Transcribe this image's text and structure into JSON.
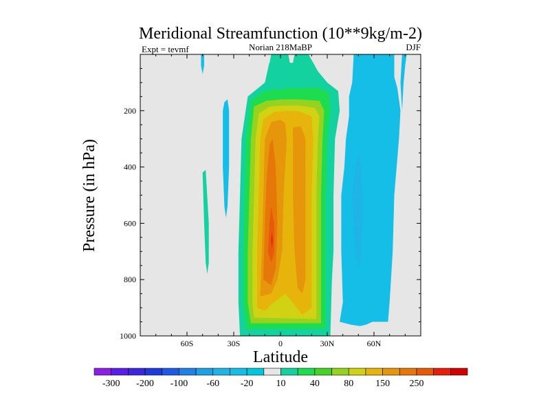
{
  "chart_data": {
    "type": "contour",
    "title": "Meridional Streamfunction (10**9kg/m-2)",
    "left_label": "Expt = tevmf",
    "center_label": "Norian 218MaBP",
    "right_label": "DJF",
    "xlabel": "Latitude",
    "ylabel": "Pressure (in hPa)",
    "xlim": [
      -90,
      90
    ],
    "ylim": [
      1000,
      0
    ],
    "x_ticks": [
      {
        "value": -60,
        "label": "60S"
      },
      {
        "value": -30,
        "label": "30S"
      },
      {
        "value": 0,
        "label": "0"
      },
      {
        "value": 30,
        "label": "30N"
      },
      {
        "value": 60,
        "label": "60N"
      }
    ],
    "y_ticks": [
      {
        "value": 200,
        "label": "200"
      },
      {
        "value": 400,
        "label": "400"
      },
      {
        "value": 600,
        "label": "600"
      },
      {
        "value": 800,
        "label": "800"
      },
      {
        "value": 1000,
        "label": "1000"
      }
    ],
    "levels": [
      -400,
      -300,
      -250,
      -200,
      -150,
      -100,
      -80,
      -60,
      -40,
      -20,
      -10,
      10,
      20,
      40,
      60,
      80,
      100,
      150,
      200,
      250,
      300
    ],
    "colorbar_labels": [
      "-300",
      "-200",
      "-100",
      "-60",
      "-20",
      "10",
      "40",
      "80",
      "150",
      "250"
    ],
    "colorbar_colors": [
      "#8c1ee6",
      "#5a1ee6",
      "#3c28dc",
      "#1e3cdc",
      "#1e5ae6",
      "#1e82e6",
      "#1ea0e6",
      "#1eb4e6",
      "#14bee6",
      "#00c8dc",
      "#e6e6e6",
      "#14d2a0",
      "#1edc50",
      "#46d228",
      "#96d21e",
      "#d2d214",
      "#e6b40a",
      "#e6960a",
      "#e6780a",
      "#e65a0a",
      "#e61e0a",
      "#d20000"
    ],
    "background_color": "#e6e6e6",
    "regions": [
      {
        "name": "hadley-north-rising",
        "color": "#14d2a0",
        "poly": [
          [
            -26,
            1000
          ],
          [
            -27,
            880
          ],
          [
            -27,
            700
          ],
          [
            -26,
            500
          ],
          [
            -25,
            300
          ],
          [
            -21,
            150
          ],
          [
            -10,
            100
          ],
          [
            -6,
            0
          ],
          [
            18,
            0
          ],
          [
            24,
            60
          ],
          [
            30,
            100
          ],
          [
            37,
            130
          ],
          [
            38,
            200
          ],
          [
            35,
            300
          ],
          [
            34,
            500
          ],
          [
            34,
            700
          ],
          [
            33,
            800
          ],
          [
            32,
            1000
          ]
        ]
      },
      {
        "name": "hadley-20",
        "color": "#1edc50",
        "poly": [
          [
            -22,
            975
          ],
          [
            -24,
            880
          ],
          [
            -24,
            700
          ],
          [
            -23,
            500
          ],
          [
            -22,
            300
          ],
          [
            -19,
            165
          ],
          [
            -12,
            135
          ],
          [
            -6,
            125
          ],
          [
            1,
            125
          ],
          [
            4,
            120
          ],
          [
            12,
            120
          ],
          [
            24,
            118
          ],
          [
            31,
            135
          ],
          [
            32,
            200
          ],
          [
            30,
            300
          ],
          [
            29,
            500
          ],
          [
            29,
            700
          ],
          [
            29,
            800
          ],
          [
            29,
            975
          ]
        ]
      },
      {
        "name": "hadley-40",
        "color": "#96d21e",
        "poly": [
          [
            -19,
            955
          ],
          [
            -21,
            880
          ],
          [
            -21,
            700
          ],
          [
            -20,
            500
          ],
          [
            -19,
            300
          ],
          [
            -17,
            185
          ],
          [
            -9,
            165
          ],
          [
            1,
            160
          ],
          [
            12,
            160
          ],
          [
            25,
            165
          ],
          [
            28,
            200
          ],
          [
            27,
            300
          ],
          [
            26,
            500
          ],
          [
            26,
            700
          ],
          [
            26,
            800
          ],
          [
            26,
            955
          ]
        ]
      },
      {
        "name": "hadley-60",
        "color": "#d2d214",
        "poly": [
          [
            -17,
            935
          ],
          [
            -18,
            880
          ],
          [
            -18,
            700
          ],
          [
            -17,
            500
          ],
          [
            -16,
            300
          ],
          [
            -14,
            210
          ],
          [
            -7,
            185
          ],
          [
            1,
            182
          ],
          [
            12,
            182
          ],
          [
            22,
            190
          ],
          [
            25,
            220
          ],
          [
            24,
            300
          ],
          [
            23,
            500
          ],
          [
            23,
            700
          ],
          [
            23,
            800
          ],
          [
            23,
            940
          ]
        ]
      },
      {
        "name": "hadley-80",
        "color": "#e6b40a",
        "poly": [
          [
            -15,
            900
          ],
          [
            -15,
            800
          ],
          [
            -15,
            700
          ],
          [
            -14,
            500
          ],
          [
            -13,
            300
          ],
          [
            -11,
            230
          ],
          [
            -4,
            205
          ],
          [
            4,
            200
          ],
          [
            12,
            202
          ],
          [
            20,
            220
          ],
          [
            21,
            300
          ],
          [
            20,
            500
          ],
          [
            20,
            700
          ],
          [
            20,
            800
          ],
          [
            20,
            900
          ],
          [
            14,
            925
          ],
          [
            9,
            890
          ],
          [
            3,
            850
          ],
          [
            -4,
            880
          ],
          [
            -10,
            910
          ]
        ]
      },
      {
        "name": "hadley-100",
        "color": "#e6960a",
        "poly": [
          [
            -13,
            860
          ],
          [
            -12,
            700
          ],
          [
            -11,
            500
          ],
          [
            -10,
            300
          ],
          [
            -6,
            240
          ],
          [
            0,
            232
          ],
          [
            3,
            245
          ],
          [
            4,
            300
          ],
          [
            2,
            500
          ],
          [
            1,
            700
          ],
          [
            -2,
            800
          ],
          [
            -6,
            850
          ]
        ]
      },
      {
        "name": "hadley-100-east",
        "color": "#e6960a",
        "poly": [
          [
            8,
            260
          ],
          [
            13,
            255
          ],
          [
            16,
            300
          ],
          [
            16,
            600
          ],
          [
            16,
            800
          ],
          [
            14,
            850
          ],
          [
            11,
            830
          ],
          [
            9,
            700
          ],
          [
            8,
            500
          ]
        ]
      },
      {
        "name": "hadley-150",
        "color": "#e6780a",
        "poly": [
          [
            -11,
            800
          ],
          [
            -10,
            600
          ],
          [
            -9,
            450
          ],
          [
            -7,
            320
          ],
          [
            -5,
            300
          ],
          [
            -3,
            400
          ],
          [
            -2,
            600
          ],
          [
            -3,
            760
          ],
          [
            -6,
            820
          ]
        ]
      },
      {
        "name": "hadley-200",
        "color": "#e65a0a",
        "poly": [
          [
            -8,
            700
          ],
          [
            -7,
            600
          ],
          [
            -6,
            540
          ],
          [
            -4,
            600
          ],
          [
            -4,
            700
          ],
          [
            -6,
            740
          ]
        ]
      },
      {
        "name": "hadley-250",
        "color": "#e61e0a",
        "poly": [
          [
            -6,
            660
          ],
          [
            -5.5,
            630
          ],
          [
            -5,
            660
          ],
          [
            -5.5,
            690
          ]
        ]
      },
      {
        "name": "ferrel-north-outer",
        "color": "#14bee6",
        "poly": [
          [
            38,
            950
          ],
          [
            40,
            880
          ],
          [
            39,
            700
          ],
          [
            39,
            500
          ],
          [
            41,
            400
          ],
          [
            42,
            300
          ],
          [
            44,
            220
          ],
          [
            44,
            150
          ],
          [
            46,
            100
          ],
          [
            47,
            0
          ],
          [
            73,
            0
          ],
          [
            73,
            80
          ],
          [
            75,
            120
          ],
          [
            77,
            200
          ],
          [
            76,
            300
          ],
          [
            73,
            500
          ],
          [
            72,
            700
          ],
          [
            70,
            880
          ],
          [
            69,
            950
          ],
          [
            59,
            950
          ],
          [
            55,
            960
          ],
          [
            51,
            965
          ],
          [
            45,
            960
          ]
        ]
      },
      {
        "name": "ferrel-north-inner",
        "color": "#1eb4e6",
        "poly": [
          [
            46,
            500
          ],
          [
            48,
            400
          ],
          [
            50,
            350
          ],
          [
            52,
            400
          ],
          [
            53,
            550
          ],
          [
            52,
            700
          ],
          [
            50,
            760
          ],
          [
            48,
            700
          ],
          [
            47,
            600
          ]
        ]
      },
      {
        "name": "polar-north-sliver",
        "color": "#14bee6",
        "poly": [
          [
            78,
            0
          ],
          [
            81,
            0
          ],
          [
            80,
            40
          ],
          [
            79,
            100
          ],
          [
            78,
            200
          ],
          [
            77,
            100
          ]
        ]
      },
      {
        "name": "polar-north-top",
        "color": "#14bee6",
        "poly": [
          [
            69,
            0
          ],
          [
            71,
            0
          ],
          [
            72,
            70
          ],
          [
            70,
            80
          ]
        ]
      },
      {
        "name": "south-sliver-top",
        "color": "#14bee6",
        "poly": [
          [
            -51,
            0
          ],
          [
            -49,
            0
          ],
          [
            -49,
            40
          ],
          [
            -50,
            70
          ],
          [
            -51,
            40
          ]
        ]
      },
      {
        "name": "south-blue-cell",
        "color": "#14bee6",
        "poly": [
          [
            -36,
            170
          ],
          [
            -34,
            160
          ],
          [
            -33,
            200
          ],
          [
            -33,
            400
          ],
          [
            -34,
            540
          ],
          [
            -35,
            580
          ],
          [
            -36,
            540
          ],
          [
            -37,
            400
          ],
          [
            -37,
            200
          ]
        ]
      },
      {
        "name": "south-green-cell",
        "color": "#14d2a0",
        "poly": [
          [
            -50,
            420
          ],
          [
            -48,
            410
          ],
          [
            -46,
            600
          ],
          [
            -46,
            740
          ],
          [
            -47,
            780
          ],
          [
            -48,
            740
          ],
          [
            -49,
            600
          ]
        ]
      },
      {
        "name": "equator-notch-left",
        "color": "#e6e6e6",
        "poly": [
          [
            -10,
            0
          ],
          [
            -6,
            0
          ],
          [
            -7,
            30
          ],
          [
            -9,
            30
          ]
        ]
      },
      {
        "name": "equator-notch-right",
        "color": "#e6e6e6",
        "poly": [
          [
            5,
            0
          ],
          [
            9,
            0
          ],
          [
            8,
            30
          ],
          [
            6,
            30
          ]
        ]
      }
    ]
  }
}
